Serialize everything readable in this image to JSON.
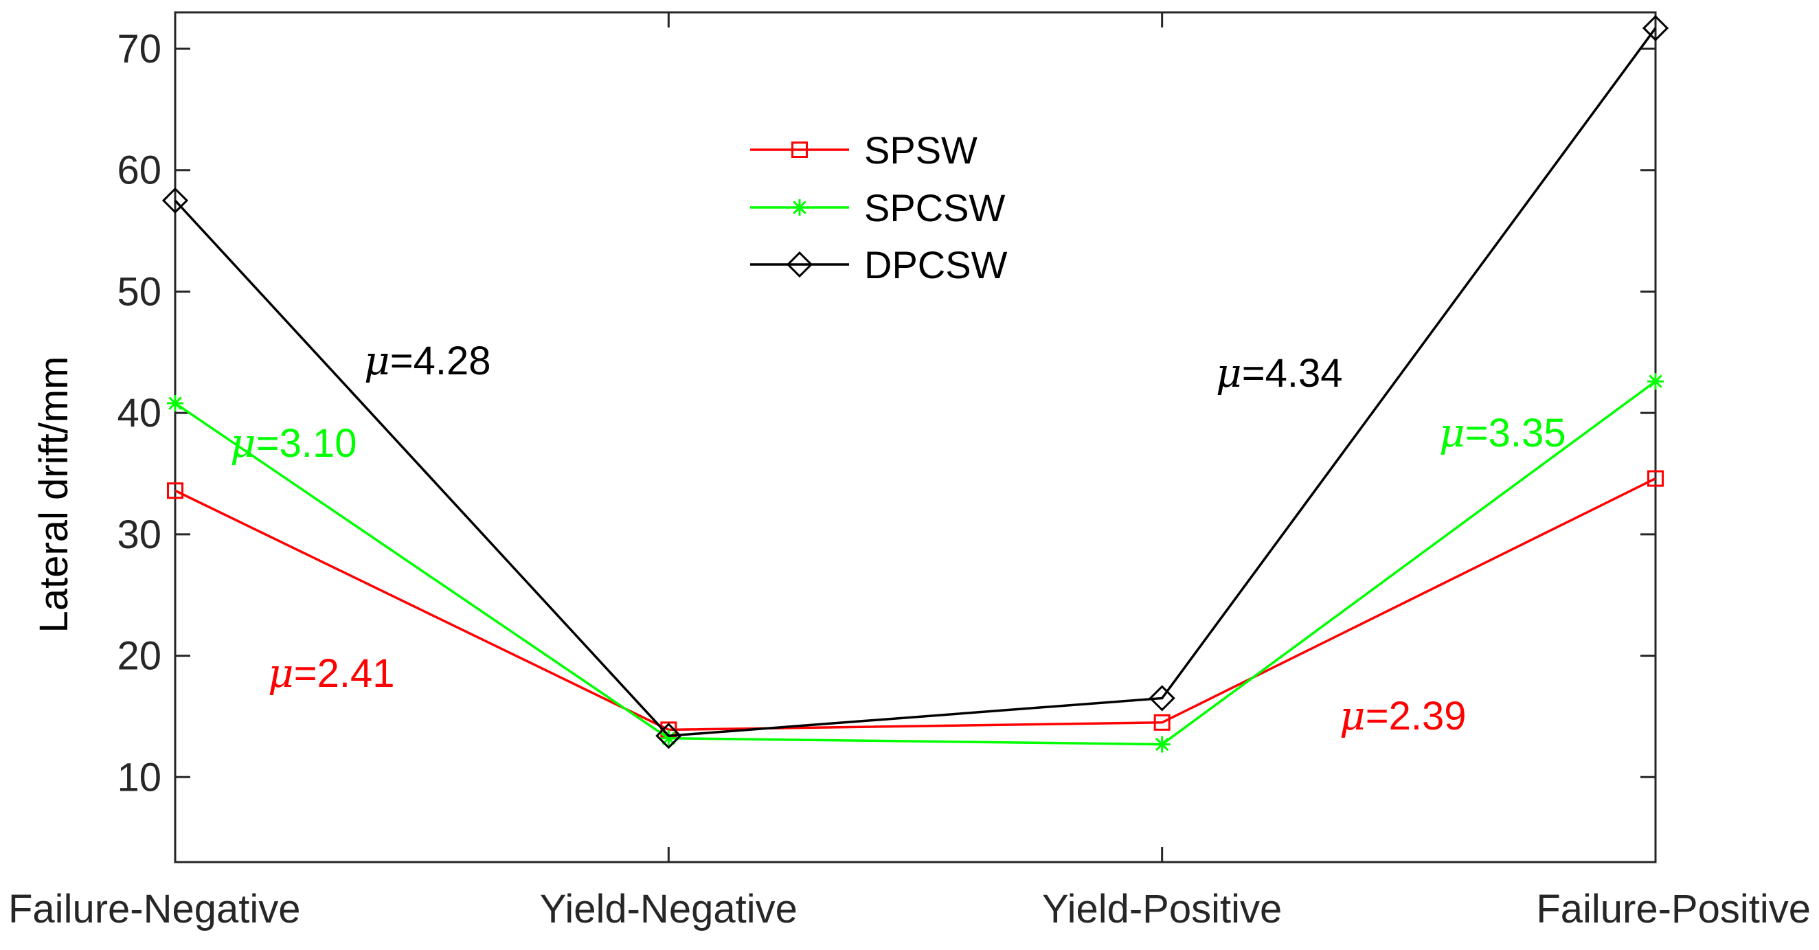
{
  "chart_data": {
    "type": "line",
    "title": "",
    "xlabel": "",
    "ylabel": "Lateral drift/mm",
    "categories": [
      "Failure-Negative",
      "Yield-Negative",
      "Yield-Positive",
      "Failure-Positive"
    ],
    "ylim": [
      3,
      73
    ],
    "yticks": [
      10,
      20,
      30,
      40,
      50,
      60,
      70
    ],
    "grid": false,
    "legend_position": "top-center",
    "series": [
      {
        "name": "SPSW",
        "color": "#ff0000",
        "marker": "square",
        "values": [
          33.6,
          13.9,
          14.5,
          34.6
        ]
      },
      {
        "name": "SPCSW",
        "color": "#00ff00",
        "marker": "asterisk",
        "values": [
          40.8,
          13.2,
          12.7,
          42.6
        ]
      },
      {
        "name": "DPCSW",
        "color": "#000000",
        "marker": "diamond",
        "values": [
          57.5,
          13.4,
          16.5,
          71.7
        ]
      }
    ],
    "annotations": [
      {
        "symbol": "μ",
        "text": "=4.28",
        "color": "#000000"
      },
      {
        "symbol": "μ",
        "text": "=3.10",
        "color": "#00ff00"
      },
      {
        "symbol": "μ",
        "text": "=2.41",
        "color": "#ff0000"
      },
      {
        "symbol": "μ",
        "text": "=4.34",
        "color": "#000000"
      },
      {
        "symbol": "μ",
        "text": "=3.35",
        "color": "#00ff00"
      },
      {
        "symbol": "μ",
        "text": "=2.39",
        "color": "#ff0000"
      }
    ]
  }
}
